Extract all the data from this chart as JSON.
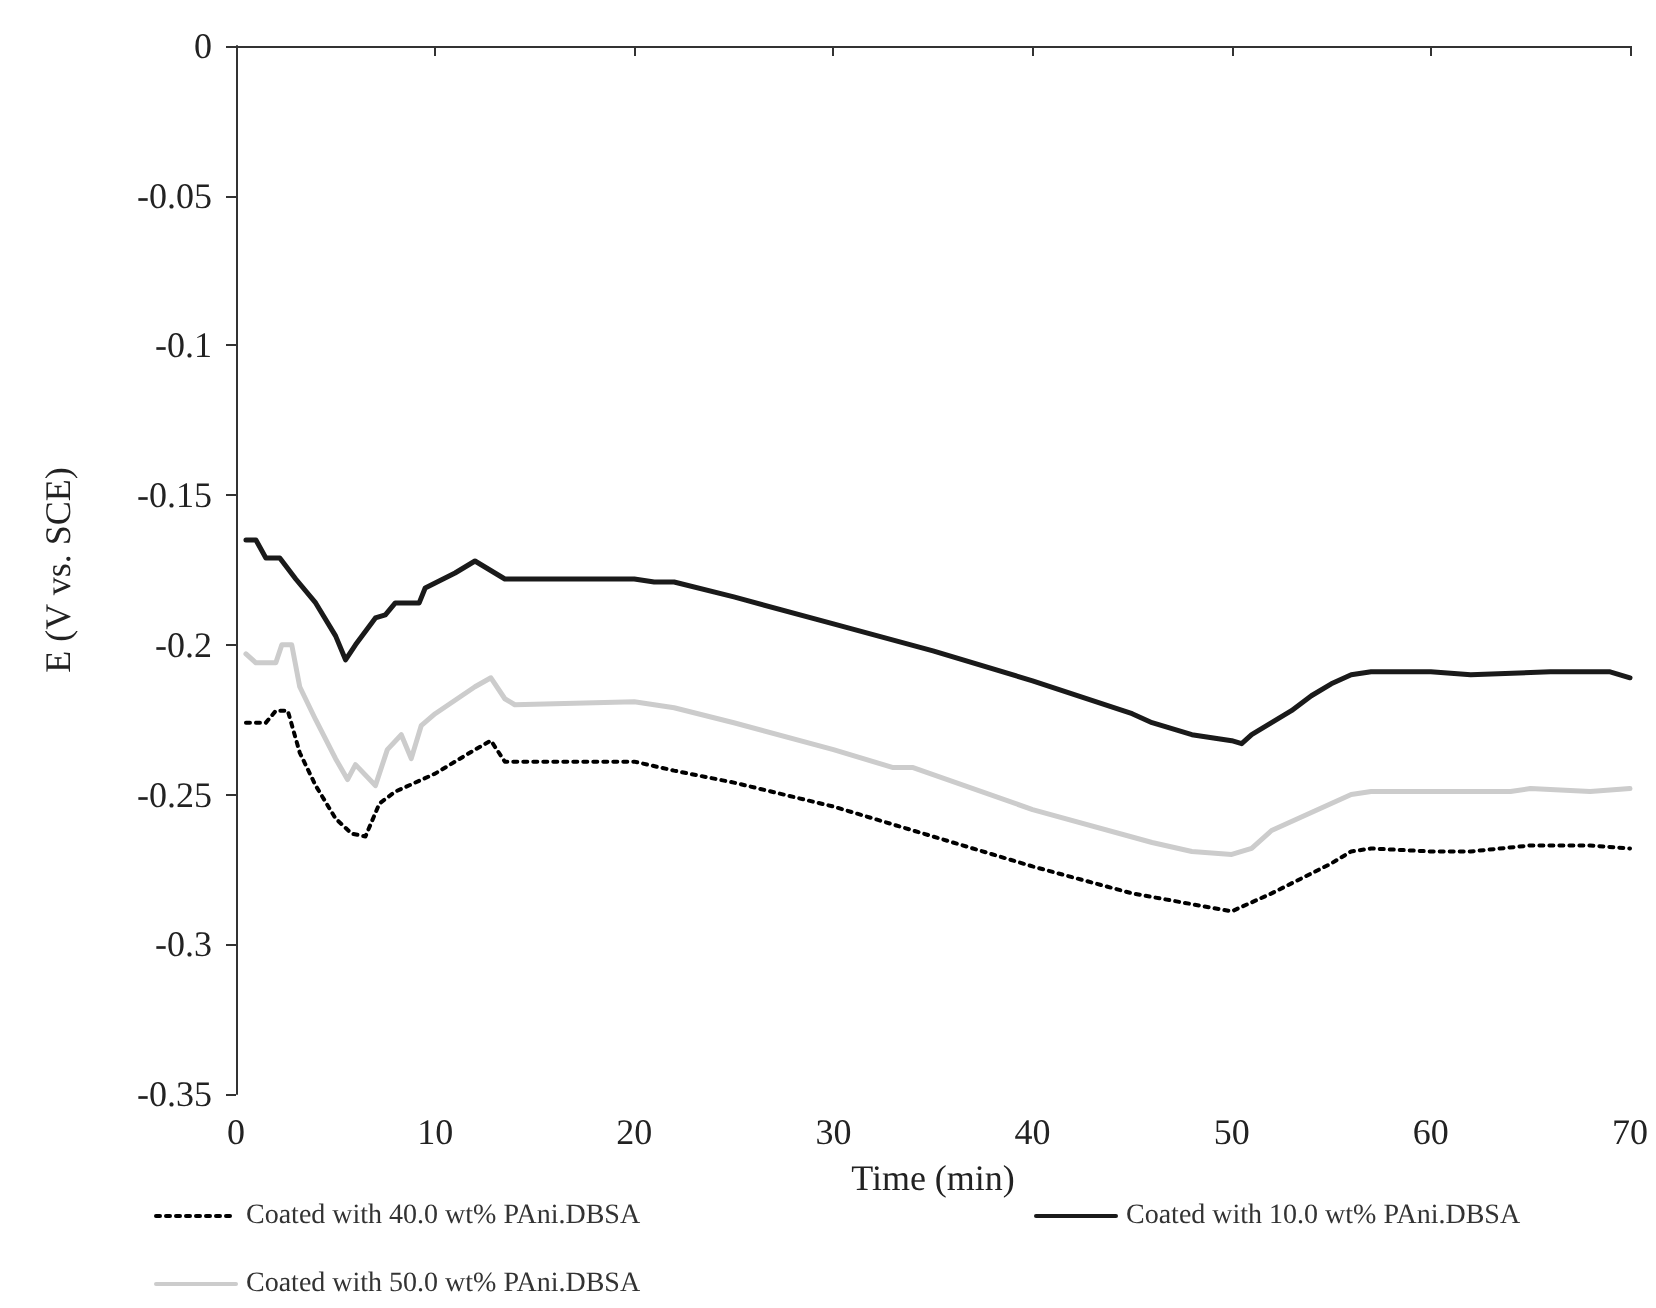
{
  "chart_data": {
    "type": "line",
    "xlabel": "Time (min)",
    "ylabel": "E (V vs. SCE)",
    "xlim": [
      0,
      70
    ],
    "xticks": [
      0,
      10,
      20,
      30,
      40,
      50,
      60,
      70
    ],
    "ylim": [
      -0.35,
      0
    ],
    "yticks": [
      -0.35,
      -0.3,
      -0.25,
      -0.2,
      -0.15,
      -0.1,
      -0.05,
      0
    ],
    "grid": false,
    "marker": "none",
    "legend": "bottom left",
    "series": [
      {
        "name": "Coated with 40.0 wt% PAni.DBSA",
        "color": "#000000",
        "line_style": "dotted",
        "x": [
          0.5,
          1.5,
          2,
          2.6,
          3.2,
          4,
          5,
          5.8,
          6.5,
          7.2,
          8,
          10,
          12,
          12.8,
          13.5,
          14,
          20,
          22,
          25,
          30,
          35,
          40,
          45,
          50,
          52,
          55,
          56,
          57,
          60,
          62,
          65,
          68,
          70
        ],
        "values": [
          -0.226,
          -0.226,
          -0.222,
          -0.222,
          -0.236,
          -0.247,
          -0.258,
          -0.263,
          -0.264,
          -0.253,
          -0.249,
          -0.243,
          -0.235,
          -0.232,
          -0.239,
          -0.239,
          -0.239,
          -0.242,
          -0.246,
          -0.254,
          -0.264,
          -0.274,
          -0.283,
          -0.289,
          -0.283,
          -0.273,
          -0.269,
          -0.268,
          -0.269,
          -0.269,
          -0.267,
          -0.267,
          -0.268
        ]
      },
      {
        "name": "Coated with 10.0 wt% PAni.DBSA",
        "color": "#1a1a1a",
        "line_style": "solid",
        "x": [
          0.5,
          1,
          1.5,
          2.2,
          3,
          4,
          5,
          5.5,
          6,
          7,
          7.5,
          8,
          9.2,
          9.5,
          11,
          12,
          13,
          13.5,
          20,
          21,
          22,
          25,
          30,
          35,
          40,
          45,
          46,
          48,
          50,
          50.5,
          51,
          52,
          53,
          54,
          55,
          56,
          57,
          60,
          62,
          66,
          69,
          70
        ],
        "values": [
          -0.165,
          -0.165,
          -0.171,
          -0.171,
          -0.178,
          -0.186,
          -0.197,
          -0.205,
          -0.2,
          -0.191,
          -0.19,
          -0.186,
          -0.186,
          -0.181,
          -0.176,
          -0.172,
          -0.176,
          -0.178,
          -0.178,
          -0.179,
          -0.179,
          -0.184,
          -0.193,
          -0.202,
          -0.212,
          -0.223,
          -0.226,
          -0.23,
          -0.232,
          -0.233,
          -0.23,
          -0.226,
          -0.222,
          -0.217,
          -0.213,
          -0.21,
          -0.209,
          -0.209,
          -0.21,
          -0.209,
          -0.209,
          -0.211
        ]
      },
      {
        "name": "Coated with 50.0 wt% PAni.DBSA",
        "color": "#cccccc",
        "line_style": "solid",
        "x": [
          0.5,
          1,
          2,
          2.3,
          2.8,
          3.2,
          4,
          5,
          5.6,
          6,
          7,
          7.6,
          8.3,
          8.8,
          9.3,
          10,
          12,
          12.8,
          13.5,
          14,
          20,
          22,
          25,
          30,
          33,
          34,
          40,
          46,
          48,
          50,
          51,
          52,
          54,
          56,
          57,
          60,
          64,
          65,
          68,
          70
        ],
        "values": [
          -0.203,
          -0.206,
          -0.206,
          -0.2,
          -0.2,
          -0.214,
          -0.225,
          -0.238,
          -0.245,
          -0.24,
          -0.247,
          -0.235,
          -0.23,
          -0.238,
          -0.227,
          -0.223,
          -0.214,
          -0.211,
          -0.218,
          -0.22,
          -0.219,
          -0.221,
          -0.226,
          -0.235,
          -0.241,
          -0.241,
          -0.255,
          -0.266,
          -0.269,
          -0.27,
          -0.268,
          -0.262,
          -0.256,
          -0.25,
          -0.249,
          -0.249,
          -0.249,
          -0.248,
          -0.249,
          -0.248
        ]
      }
    ]
  }
}
